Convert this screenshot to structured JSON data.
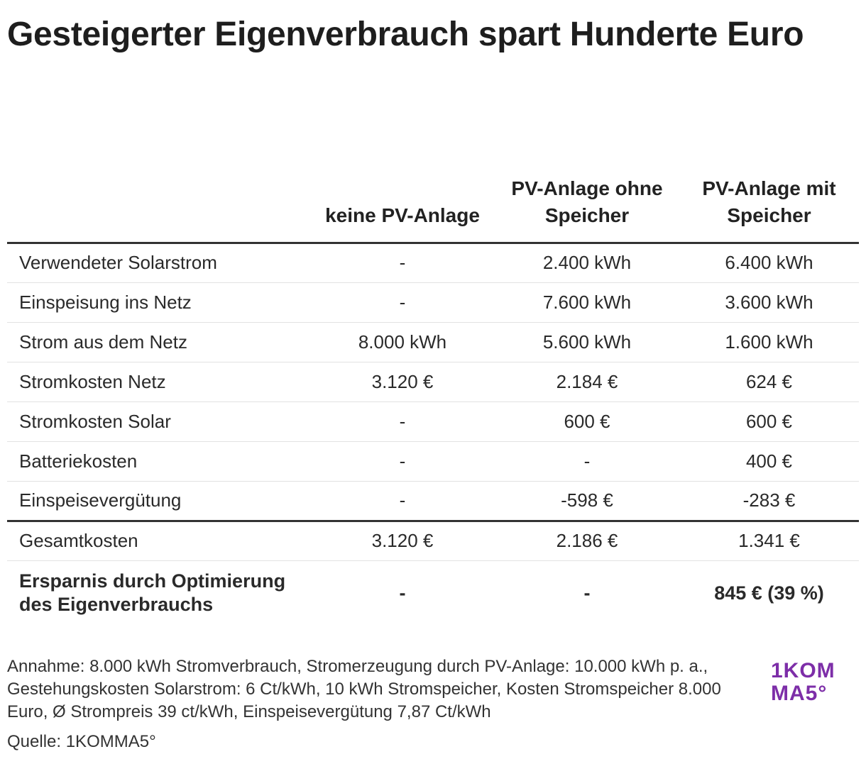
{
  "title": "Gesteigerter Eigenverbrauch spart Hunderte Euro",
  "chart_data": {
    "type": "table",
    "columns": [
      "",
      "keine PV-Anlage",
      "PV-Anlage ohne Speicher",
      "PV-Anlage mit Speicher"
    ],
    "rows": [
      {
        "label": "Verwendeter Solarstrom",
        "values": [
          "-",
          "2.400 kWh",
          "6.400 kWh"
        ]
      },
      {
        "label": "Einspeisung ins Netz",
        "values": [
          "-",
          "7.600 kWh",
          "3.600 kWh"
        ]
      },
      {
        "label": "Strom aus dem Netz",
        "values": [
          "8.000 kWh",
          "5.600 kWh",
          "1.600 kWh"
        ]
      },
      {
        "label": "Stromkosten Netz",
        "values": [
          "3.120 €",
          "2.184 €",
          "624 €"
        ]
      },
      {
        "label": "Stromkosten Solar",
        "values": [
          "-",
          "600 €",
          "600 €"
        ]
      },
      {
        "label": "Batteriekosten",
        "values": [
          "-",
          "-",
          "400 €"
        ]
      },
      {
        "label": "Einspeisevergütung",
        "values": [
          "-",
          "-598 €",
          "-283 €"
        ]
      },
      {
        "label": "Gesamtkosten",
        "values": [
          "3.120 €",
          "2.186 €",
          "1.341 €"
        ]
      },
      {
        "label": "Ersparnis durch Optimierung des Eigenverbrauchs",
        "values": [
          "-",
          "-",
          "845 € (39 %)"
        ]
      }
    ]
  },
  "note": "Annahme: 8.000 kWh Stromverbrauch, Stromerzeugung durch PV-Anlage: 10.000 kWh p. a., Gestehungskosten Solarstrom: 6 Ct/kWh, 10 kWh Stromspeicher, Kosten Stromspeicher 8.000 Euro, Ø Strompreis 39 ct/kWh, Einspeisevergütung 7,87 Ct/kWh",
  "source": "Quelle: 1KOMMA5°",
  "logo": {
    "line1": "1KOM",
    "line2": "MA5°",
    "color": "#7d2ea8"
  }
}
